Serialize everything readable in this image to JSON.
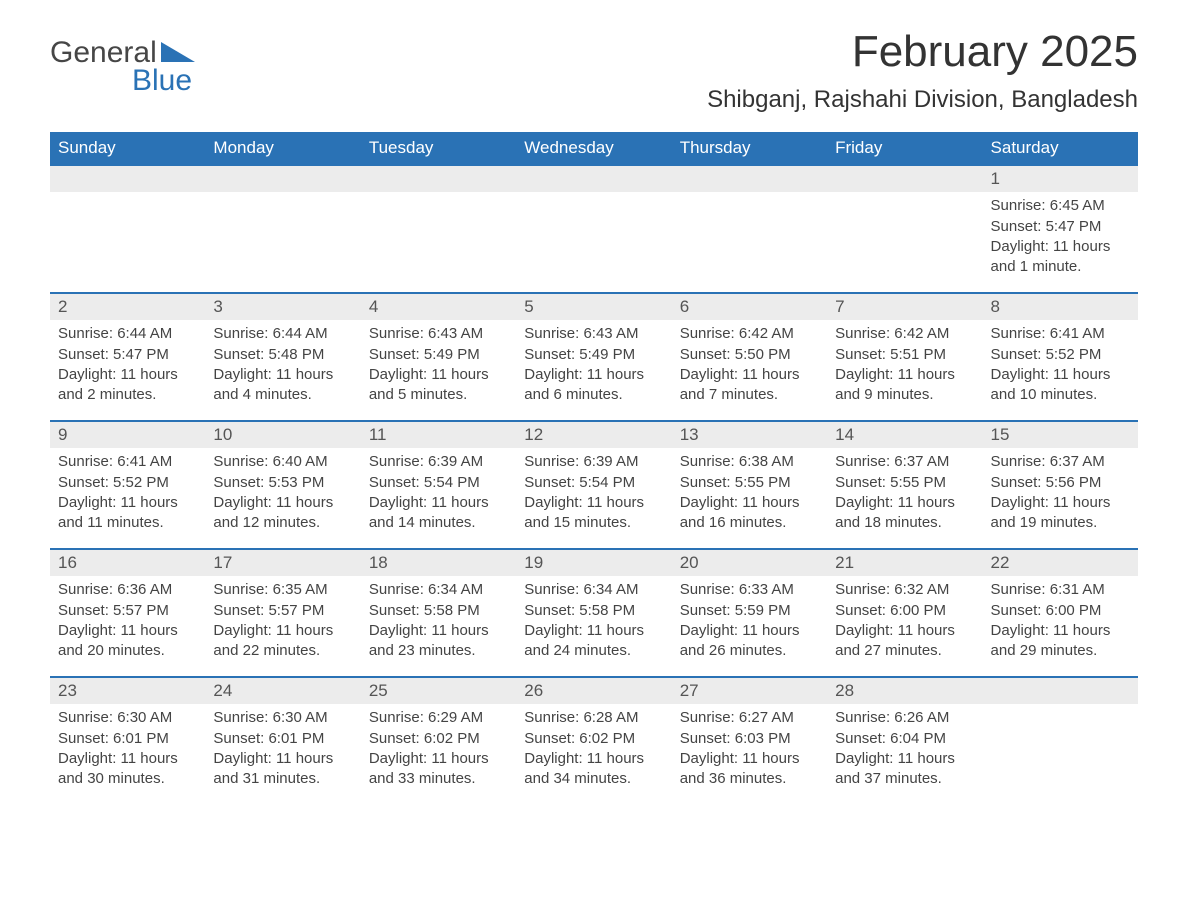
{
  "logo": {
    "text1": "General",
    "text2": "Blue",
    "accent_color": "#2a72b5"
  },
  "header": {
    "month_title": "February 2025",
    "location": "Shibganj, Rajshahi Division, Bangladesh"
  },
  "calendar": {
    "day_headers": [
      "Sunday",
      "Monday",
      "Tuesday",
      "Wednesday",
      "Thursday",
      "Friday",
      "Saturday"
    ],
    "header_bg": "#2a72b5",
    "header_text_color": "#ffffff",
    "row_divider_color": "#2a72b5",
    "daynum_bg": "#ececec",
    "weeks": [
      [
        null,
        null,
        null,
        null,
        null,
        null,
        {
          "day": "1",
          "sunrise": "Sunrise: 6:45 AM",
          "sunset": "Sunset: 5:47 PM",
          "daylight": "Daylight: 11 hours and 1 minute."
        }
      ],
      [
        {
          "day": "2",
          "sunrise": "Sunrise: 6:44 AM",
          "sunset": "Sunset: 5:47 PM",
          "daylight": "Daylight: 11 hours and 2 minutes."
        },
        {
          "day": "3",
          "sunrise": "Sunrise: 6:44 AM",
          "sunset": "Sunset: 5:48 PM",
          "daylight": "Daylight: 11 hours and 4 minutes."
        },
        {
          "day": "4",
          "sunrise": "Sunrise: 6:43 AM",
          "sunset": "Sunset: 5:49 PM",
          "daylight": "Daylight: 11 hours and 5 minutes."
        },
        {
          "day": "5",
          "sunrise": "Sunrise: 6:43 AM",
          "sunset": "Sunset: 5:49 PM",
          "daylight": "Daylight: 11 hours and 6 minutes."
        },
        {
          "day": "6",
          "sunrise": "Sunrise: 6:42 AM",
          "sunset": "Sunset: 5:50 PM",
          "daylight": "Daylight: 11 hours and 7 minutes."
        },
        {
          "day": "7",
          "sunrise": "Sunrise: 6:42 AM",
          "sunset": "Sunset: 5:51 PM",
          "daylight": "Daylight: 11 hours and 9 minutes."
        },
        {
          "day": "8",
          "sunrise": "Sunrise: 6:41 AM",
          "sunset": "Sunset: 5:52 PM",
          "daylight": "Daylight: 11 hours and 10 minutes."
        }
      ],
      [
        {
          "day": "9",
          "sunrise": "Sunrise: 6:41 AM",
          "sunset": "Sunset: 5:52 PM",
          "daylight": "Daylight: 11 hours and 11 minutes."
        },
        {
          "day": "10",
          "sunrise": "Sunrise: 6:40 AM",
          "sunset": "Sunset: 5:53 PM",
          "daylight": "Daylight: 11 hours and 12 minutes."
        },
        {
          "day": "11",
          "sunrise": "Sunrise: 6:39 AM",
          "sunset": "Sunset: 5:54 PM",
          "daylight": "Daylight: 11 hours and 14 minutes."
        },
        {
          "day": "12",
          "sunrise": "Sunrise: 6:39 AM",
          "sunset": "Sunset: 5:54 PM",
          "daylight": "Daylight: 11 hours and 15 minutes."
        },
        {
          "day": "13",
          "sunrise": "Sunrise: 6:38 AM",
          "sunset": "Sunset: 5:55 PM",
          "daylight": "Daylight: 11 hours and 16 minutes."
        },
        {
          "day": "14",
          "sunrise": "Sunrise: 6:37 AM",
          "sunset": "Sunset: 5:55 PM",
          "daylight": "Daylight: 11 hours and 18 minutes."
        },
        {
          "day": "15",
          "sunrise": "Sunrise: 6:37 AM",
          "sunset": "Sunset: 5:56 PM",
          "daylight": "Daylight: 11 hours and 19 minutes."
        }
      ],
      [
        {
          "day": "16",
          "sunrise": "Sunrise: 6:36 AM",
          "sunset": "Sunset: 5:57 PM",
          "daylight": "Daylight: 11 hours and 20 minutes."
        },
        {
          "day": "17",
          "sunrise": "Sunrise: 6:35 AM",
          "sunset": "Sunset: 5:57 PM",
          "daylight": "Daylight: 11 hours and 22 minutes."
        },
        {
          "day": "18",
          "sunrise": "Sunrise: 6:34 AM",
          "sunset": "Sunset: 5:58 PM",
          "daylight": "Daylight: 11 hours and 23 minutes."
        },
        {
          "day": "19",
          "sunrise": "Sunrise: 6:34 AM",
          "sunset": "Sunset: 5:58 PM",
          "daylight": "Daylight: 11 hours and 24 minutes."
        },
        {
          "day": "20",
          "sunrise": "Sunrise: 6:33 AM",
          "sunset": "Sunset: 5:59 PM",
          "daylight": "Daylight: 11 hours and 26 minutes."
        },
        {
          "day": "21",
          "sunrise": "Sunrise: 6:32 AM",
          "sunset": "Sunset: 6:00 PM",
          "daylight": "Daylight: 11 hours and 27 minutes."
        },
        {
          "day": "22",
          "sunrise": "Sunrise: 6:31 AM",
          "sunset": "Sunset: 6:00 PM",
          "daylight": "Daylight: 11 hours and 29 minutes."
        }
      ],
      [
        {
          "day": "23",
          "sunrise": "Sunrise: 6:30 AM",
          "sunset": "Sunset: 6:01 PM",
          "daylight": "Daylight: 11 hours and 30 minutes."
        },
        {
          "day": "24",
          "sunrise": "Sunrise: 6:30 AM",
          "sunset": "Sunset: 6:01 PM",
          "daylight": "Daylight: 11 hours and 31 minutes."
        },
        {
          "day": "25",
          "sunrise": "Sunrise: 6:29 AM",
          "sunset": "Sunset: 6:02 PM",
          "daylight": "Daylight: 11 hours and 33 minutes."
        },
        {
          "day": "26",
          "sunrise": "Sunrise: 6:28 AM",
          "sunset": "Sunset: 6:02 PM",
          "daylight": "Daylight: 11 hours and 34 minutes."
        },
        {
          "day": "27",
          "sunrise": "Sunrise: 6:27 AM",
          "sunset": "Sunset: 6:03 PM",
          "daylight": "Daylight: 11 hours and 36 minutes."
        },
        {
          "day": "28",
          "sunrise": "Sunrise: 6:26 AM",
          "sunset": "Sunset: 6:04 PM",
          "daylight": "Daylight: 11 hours and 37 minutes."
        },
        null
      ]
    ]
  }
}
